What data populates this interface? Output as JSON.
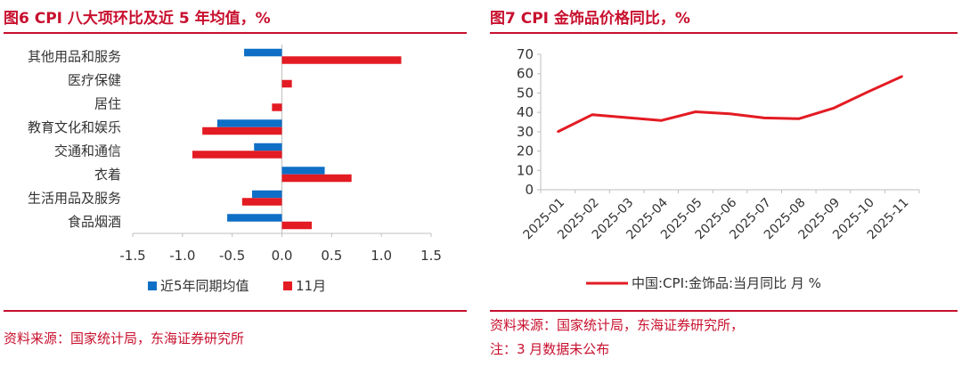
{
  "left_panel": {
    "title": "图6  CPI 八大项环比及近 5 年均值，%",
    "source": "资料来源：国家统计局，东海证券研究所"
  },
  "right_panel": {
    "title": "图7  CPI 金饰品价格同比，%",
    "source": "资料来源：国家统计局，东海证券研究所，",
    "note": "注：3 月数据未公布"
  },
  "colors": {
    "accent": "#c8102e",
    "series_blue": "#0f6fc6",
    "series_red": "#e31b23"
  },
  "chart_data": [
    {
      "type": "bar",
      "orientation": "horizontal",
      "categories": [
        "其他用品和服务",
        "医疗保健",
        "居住",
        "教育文化和娱乐",
        "交通和通信",
        "衣着",
        "生活用品及服务",
        "食品烟酒"
      ],
      "series": [
        {
          "name": "近5年同期均值",
          "color": "#0f6fc6",
          "values": [
            -0.38,
            0.0,
            0.0,
            -0.65,
            -0.28,
            0.43,
            -0.3,
            -0.55
          ]
        },
        {
          "name": "11月",
          "color": "#e31b23",
          "values": [
            1.2,
            0.1,
            -0.1,
            -0.8,
            -0.9,
            0.7,
            -0.4,
            0.3
          ]
        }
      ],
      "xlim": [
        -1.5,
        1.5
      ],
      "xticks": [
        "-1.5",
        "-1.0",
        "-0.5",
        "0.0",
        "0.5",
        "1.0",
        "1.5"
      ],
      "xtick_values": [
        -1.5,
        -1.0,
        -0.5,
        0.0,
        0.5,
        1.0,
        1.5
      ],
      "legend": "bottom-center"
    },
    {
      "type": "line",
      "x": [
        "2025-01",
        "2025-02",
        "2025-03",
        "2025-04",
        "2025-05",
        "2025-06",
        "2025-07",
        "2025-08",
        "2025-09",
        "2025-10",
        "2025-11"
      ],
      "series": [
        {
          "name": "中国:CPI:金饰品:当月同比 月 %",
          "color": "#e31b23",
          "values": [
            30.0,
            38.8,
            37.3,
            35.8,
            40.3,
            39.3,
            37.1,
            36.7,
            42.1,
            50.5,
            58.6
          ]
        }
      ],
      "ylim": [
        0,
        70
      ],
      "yticks": [
        "0",
        "10",
        "20",
        "30",
        "40",
        "50",
        "60",
        "70"
      ],
      "ytick_values": [
        0,
        10,
        20,
        30,
        40,
        50,
        60,
        70
      ],
      "legend": "bottom-center"
    }
  ]
}
